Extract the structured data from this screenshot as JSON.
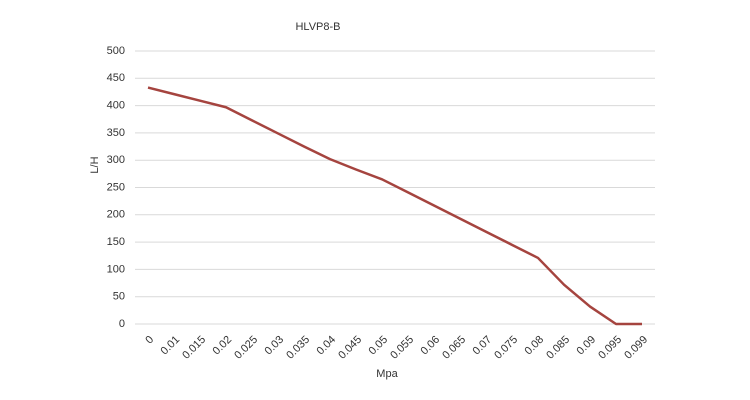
{
  "chart_data": {
    "type": "line",
    "title": "HLVP8-B",
    "x_label": "Mpa",
    "y_label": "L/H",
    "categories": [
      "0",
      "0.01",
      "0.015",
      "0.02",
      "0.025",
      "0.03",
      "0.035",
      "0.04",
      "0.045",
      "0.05",
      "0.055",
      "0.06",
      "0.065",
      "0.07",
      "0.075",
      "0.08",
      "0.085",
      "0.09",
      "0.095",
      "0.099"
    ],
    "values": [
      433,
      421,
      409,
      397,
      373,
      349,
      325,
      302,
      283,
      265,
      241,
      217,
      193,
      169,
      145,
      121,
      72,
      32,
      0,
      0
    ],
    "color": "#a5443f",
    "ylim": [
      0,
      500
    ],
    "yticks": [
      0,
      50,
      100,
      150,
      200,
      250,
      300,
      350,
      400,
      450,
      500
    ],
    "grid": true
  }
}
